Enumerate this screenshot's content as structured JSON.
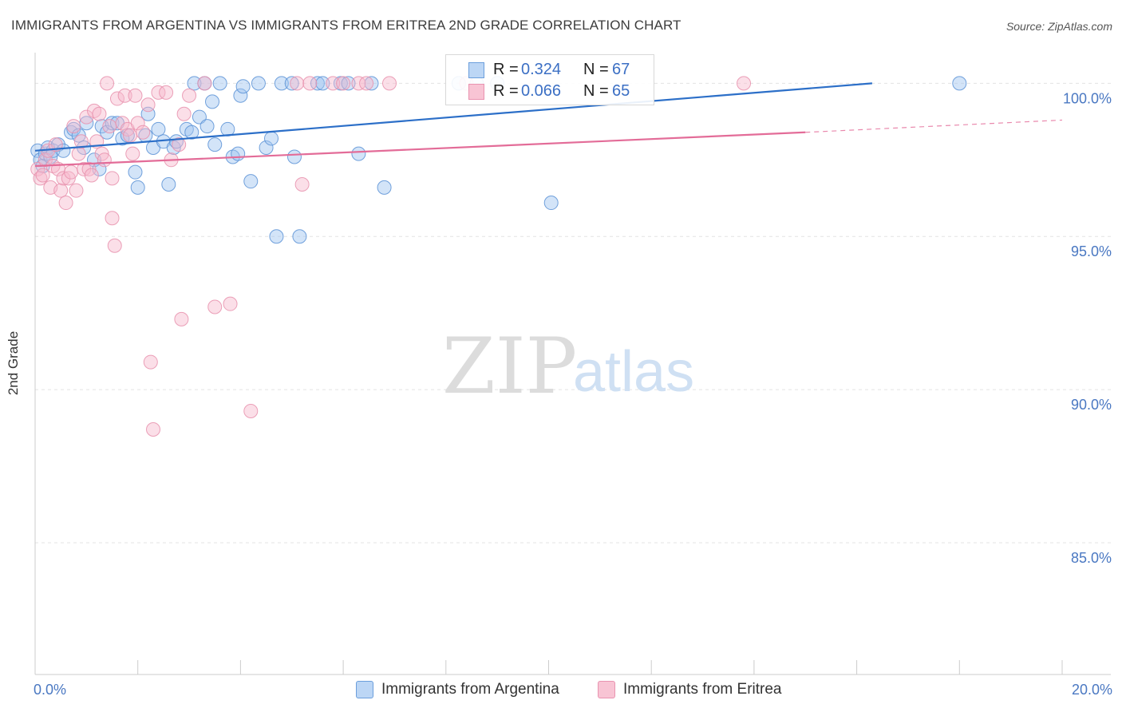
{
  "header": {
    "title": "IMMIGRANTS FROM ARGENTINA VS IMMIGRANTS FROM ERITREA 2ND GRADE CORRELATION CHART",
    "source": "Source: ZipAtlas.com"
  },
  "watermark": {
    "zip": "ZIP",
    "atlas": "atlas"
  },
  "legend": {
    "rows": [
      {
        "r_label": "R =",
        "r_value": "0.324",
        "n_label": "N =",
        "n_value": "67"
      },
      {
        "r_label": "R =",
        "r_value": "0.066",
        "n_label": "N =",
        "n_value": "65"
      }
    ]
  },
  "bottom_legend": {
    "argentina": "Immigrants from Argentina",
    "eritrea": "Immigrants from Eritrea"
  },
  "colors": {
    "blue_fill": "#9ec3ef",
    "blue_stroke": "#5b92d6",
    "blue_line": "#2c6fc8",
    "pink_fill": "#f6b8cc",
    "pink_stroke": "#e890ad",
    "pink_line": "#e36c98",
    "tick_text": "#4a78c2",
    "grid": "#e3e3e3"
  },
  "chart_data": {
    "type": "scatter",
    "title": "IMMIGRANTS FROM ARGENTINA VS IMMIGRANTS FROM ERITREA 2ND GRADE CORRELATION CHART",
    "xlabel": "",
    "ylabel": "2nd Grade",
    "xlim": [
      0,
      20
    ],
    "ylim": [
      80.7,
      101.0
    ],
    "x_tick_labels": [
      {
        "value": 0,
        "label": "0.0%"
      },
      {
        "value": 20,
        "label": "20.0%"
      }
    ],
    "x_minor_ticks": [
      0,
      2,
      4,
      6,
      8,
      10,
      12,
      14,
      16,
      18,
      20
    ],
    "y_ticks": [
      {
        "value": 100,
        "label": "100.0%"
      },
      {
        "value": 95,
        "label": "95.0%"
      },
      {
        "value": 90,
        "label": "90.0%"
      },
      {
        "value": 85,
        "label": "85.0%"
      }
    ],
    "grid": true,
    "series": [
      {
        "name": "Immigrants from Argentina",
        "color": "blue",
        "R": 0.324,
        "N": 67,
        "trend": {
          "x0": 0,
          "y0": 97.8,
          "x1": 16.3,
          "y1": 100.0,
          "dashed_to": null
        },
        "points": [
          [
            0.05,
            97.8
          ],
          [
            0.1,
            97.5
          ],
          [
            0.15,
            97.3
          ],
          [
            0.2,
            97.7
          ],
          [
            0.25,
            97.9
          ],
          [
            0.3,
            97.6
          ],
          [
            0.35,
            97.8
          ],
          [
            0.45,
            98.0
          ],
          [
            0.55,
            97.8
          ],
          [
            0.7,
            98.4
          ],
          [
            0.75,
            98.5
          ],
          [
            0.85,
            98.3
          ],
          [
            0.95,
            97.9
          ],
          [
            1.0,
            98.7
          ],
          [
            1.15,
            97.5
          ],
          [
            1.25,
            97.2
          ],
          [
            1.3,
            98.6
          ],
          [
            1.4,
            98.4
          ],
          [
            1.5,
            98.7
          ],
          [
            1.6,
            98.7
          ],
          [
            1.7,
            98.2
          ],
          [
            1.8,
            98.3
          ],
          [
            1.95,
            97.1
          ],
          [
            2.0,
            96.6
          ],
          [
            2.15,
            98.3
          ],
          [
            2.2,
            99.0
          ],
          [
            2.3,
            97.9
          ],
          [
            2.4,
            98.5
          ],
          [
            2.5,
            98.1
          ],
          [
            2.6,
            96.7
          ],
          [
            2.7,
            97.9
          ],
          [
            2.75,
            98.1
          ],
          [
            2.95,
            98.5
          ],
          [
            3.05,
            98.4
          ],
          [
            3.1,
            100.0
          ],
          [
            3.2,
            98.9
          ],
          [
            3.3,
            100.0
          ],
          [
            3.35,
            98.6
          ],
          [
            3.45,
            99.4
          ],
          [
            3.5,
            98.0
          ],
          [
            3.6,
            100.0
          ],
          [
            3.75,
            98.5
          ],
          [
            3.85,
            97.6
          ],
          [
            3.95,
            97.7
          ],
          [
            4.0,
            99.6
          ],
          [
            4.05,
            99.9
          ],
          [
            4.2,
            96.8
          ],
          [
            4.35,
            100.0
          ],
          [
            4.5,
            97.9
          ],
          [
            4.6,
            98.2
          ],
          [
            4.7,
            95.0
          ],
          [
            4.8,
            100.0
          ],
          [
            5.0,
            100.0
          ],
          [
            5.05,
            97.6
          ],
          [
            5.15,
            95.0
          ],
          [
            5.5,
            100.0
          ],
          [
            5.6,
            100.0
          ],
          [
            5.95,
            100.0
          ],
          [
            6.1,
            100.0
          ],
          [
            6.3,
            97.7
          ],
          [
            6.55,
            100.0
          ],
          [
            6.8,
            96.6
          ],
          [
            8.25,
            100.0
          ],
          [
            8.6,
            100.0
          ],
          [
            9.0,
            100.0
          ],
          [
            10.05,
            96.1
          ],
          [
            18.0,
            100.0
          ]
        ]
      },
      {
        "name": "Immigrants from Eritrea",
        "color": "pink",
        "R": 0.066,
        "N": 65,
        "trend": {
          "x0": 0,
          "y0": 97.3,
          "x1": 15.0,
          "y1": 98.4,
          "dashed_to": {
            "x": 20.0,
            "y": 98.8
          }
        },
        "points": [
          [
            0.05,
            97.2
          ],
          [
            0.1,
            96.9
          ],
          [
            0.15,
            97.0
          ],
          [
            0.2,
            97.5
          ],
          [
            0.25,
            97.8
          ],
          [
            0.3,
            96.6
          ],
          [
            0.35,
            97.3
          ],
          [
            0.4,
            98.0
          ],
          [
            0.45,
            97.2
          ],
          [
            0.5,
            96.5
          ],
          [
            0.55,
            96.9
          ],
          [
            0.6,
            96.1
          ],
          [
            0.65,
            96.9
          ],
          [
            0.7,
            97.1
          ],
          [
            0.75,
            98.6
          ],
          [
            0.8,
            96.5
          ],
          [
            0.85,
            97.7
          ],
          [
            0.9,
            98.1
          ],
          [
            0.95,
            97.2
          ],
          [
            1.0,
            98.9
          ],
          [
            1.05,
            97.2
          ],
          [
            1.1,
            97.0
          ],
          [
            1.15,
            99.1
          ],
          [
            1.2,
            98.1
          ],
          [
            1.25,
            99.0
          ],
          [
            1.3,
            97.7
          ],
          [
            1.35,
            97.5
          ],
          [
            1.4,
            100.0
          ],
          [
            1.45,
            98.6
          ],
          [
            1.5,
            95.6
          ],
          [
            1.5,
            96.9
          ],
          [
            1.55,
            94.7
          ],
          [
            1.6,
            99.5
          ],
          [
            1.7,
            98.7
          ],
          [
            1.75,
            99.6
          ],
          [
            1.8,
            98.5
          ],
          [
            1.85,
            98.3
          ],
          [
            1.9,
            97.7
          ],
          [
            1.95,
            99.6
          ],
          [
            2.0,
            98.7
          ],
          [
            2.1,
            98.4
          ],
          [
            2.2,
            99.3
          ],
          [
            2.25,
            90.9
          ],
          [
            2.3,
            88.7
          ],
          [
            2.4,
            99.7
          ],
          [
            2.55,
            99.7
          ],
          [
            2.65,
            97.5
          ],
          [
            2.8,
            98.0
          ],
          [
            2.85,
            92.3
          ],
          [
            2.9,
            99.0
          ],
          [
            3.0,
            99.6
          ],
          [
            3.3,
            100.0
          ],
          [
            3.5,
            92.7
          ],
          [
            3.8,
            92.8
          ],
          [
            4.2,
            89.3
          ],
          [
            5.1,
            100.0
          ],
          [
            5.2,
            96.7
          ],
          [
            5.35,
            100.0
          ],
          [
            5.8,
            100.0
          ],
          [
            6.0,
            100.0
          ],
          [
            6.3,
            100.0
          ],
          [
            6.45,
            100.0
          ],
          [
            6.9,
            100.0
          ],
          [
            8.4,
            100.0
          ],
          [
            13.8,
            100.0
          ]
        ]
      }
    ]
  }
}
